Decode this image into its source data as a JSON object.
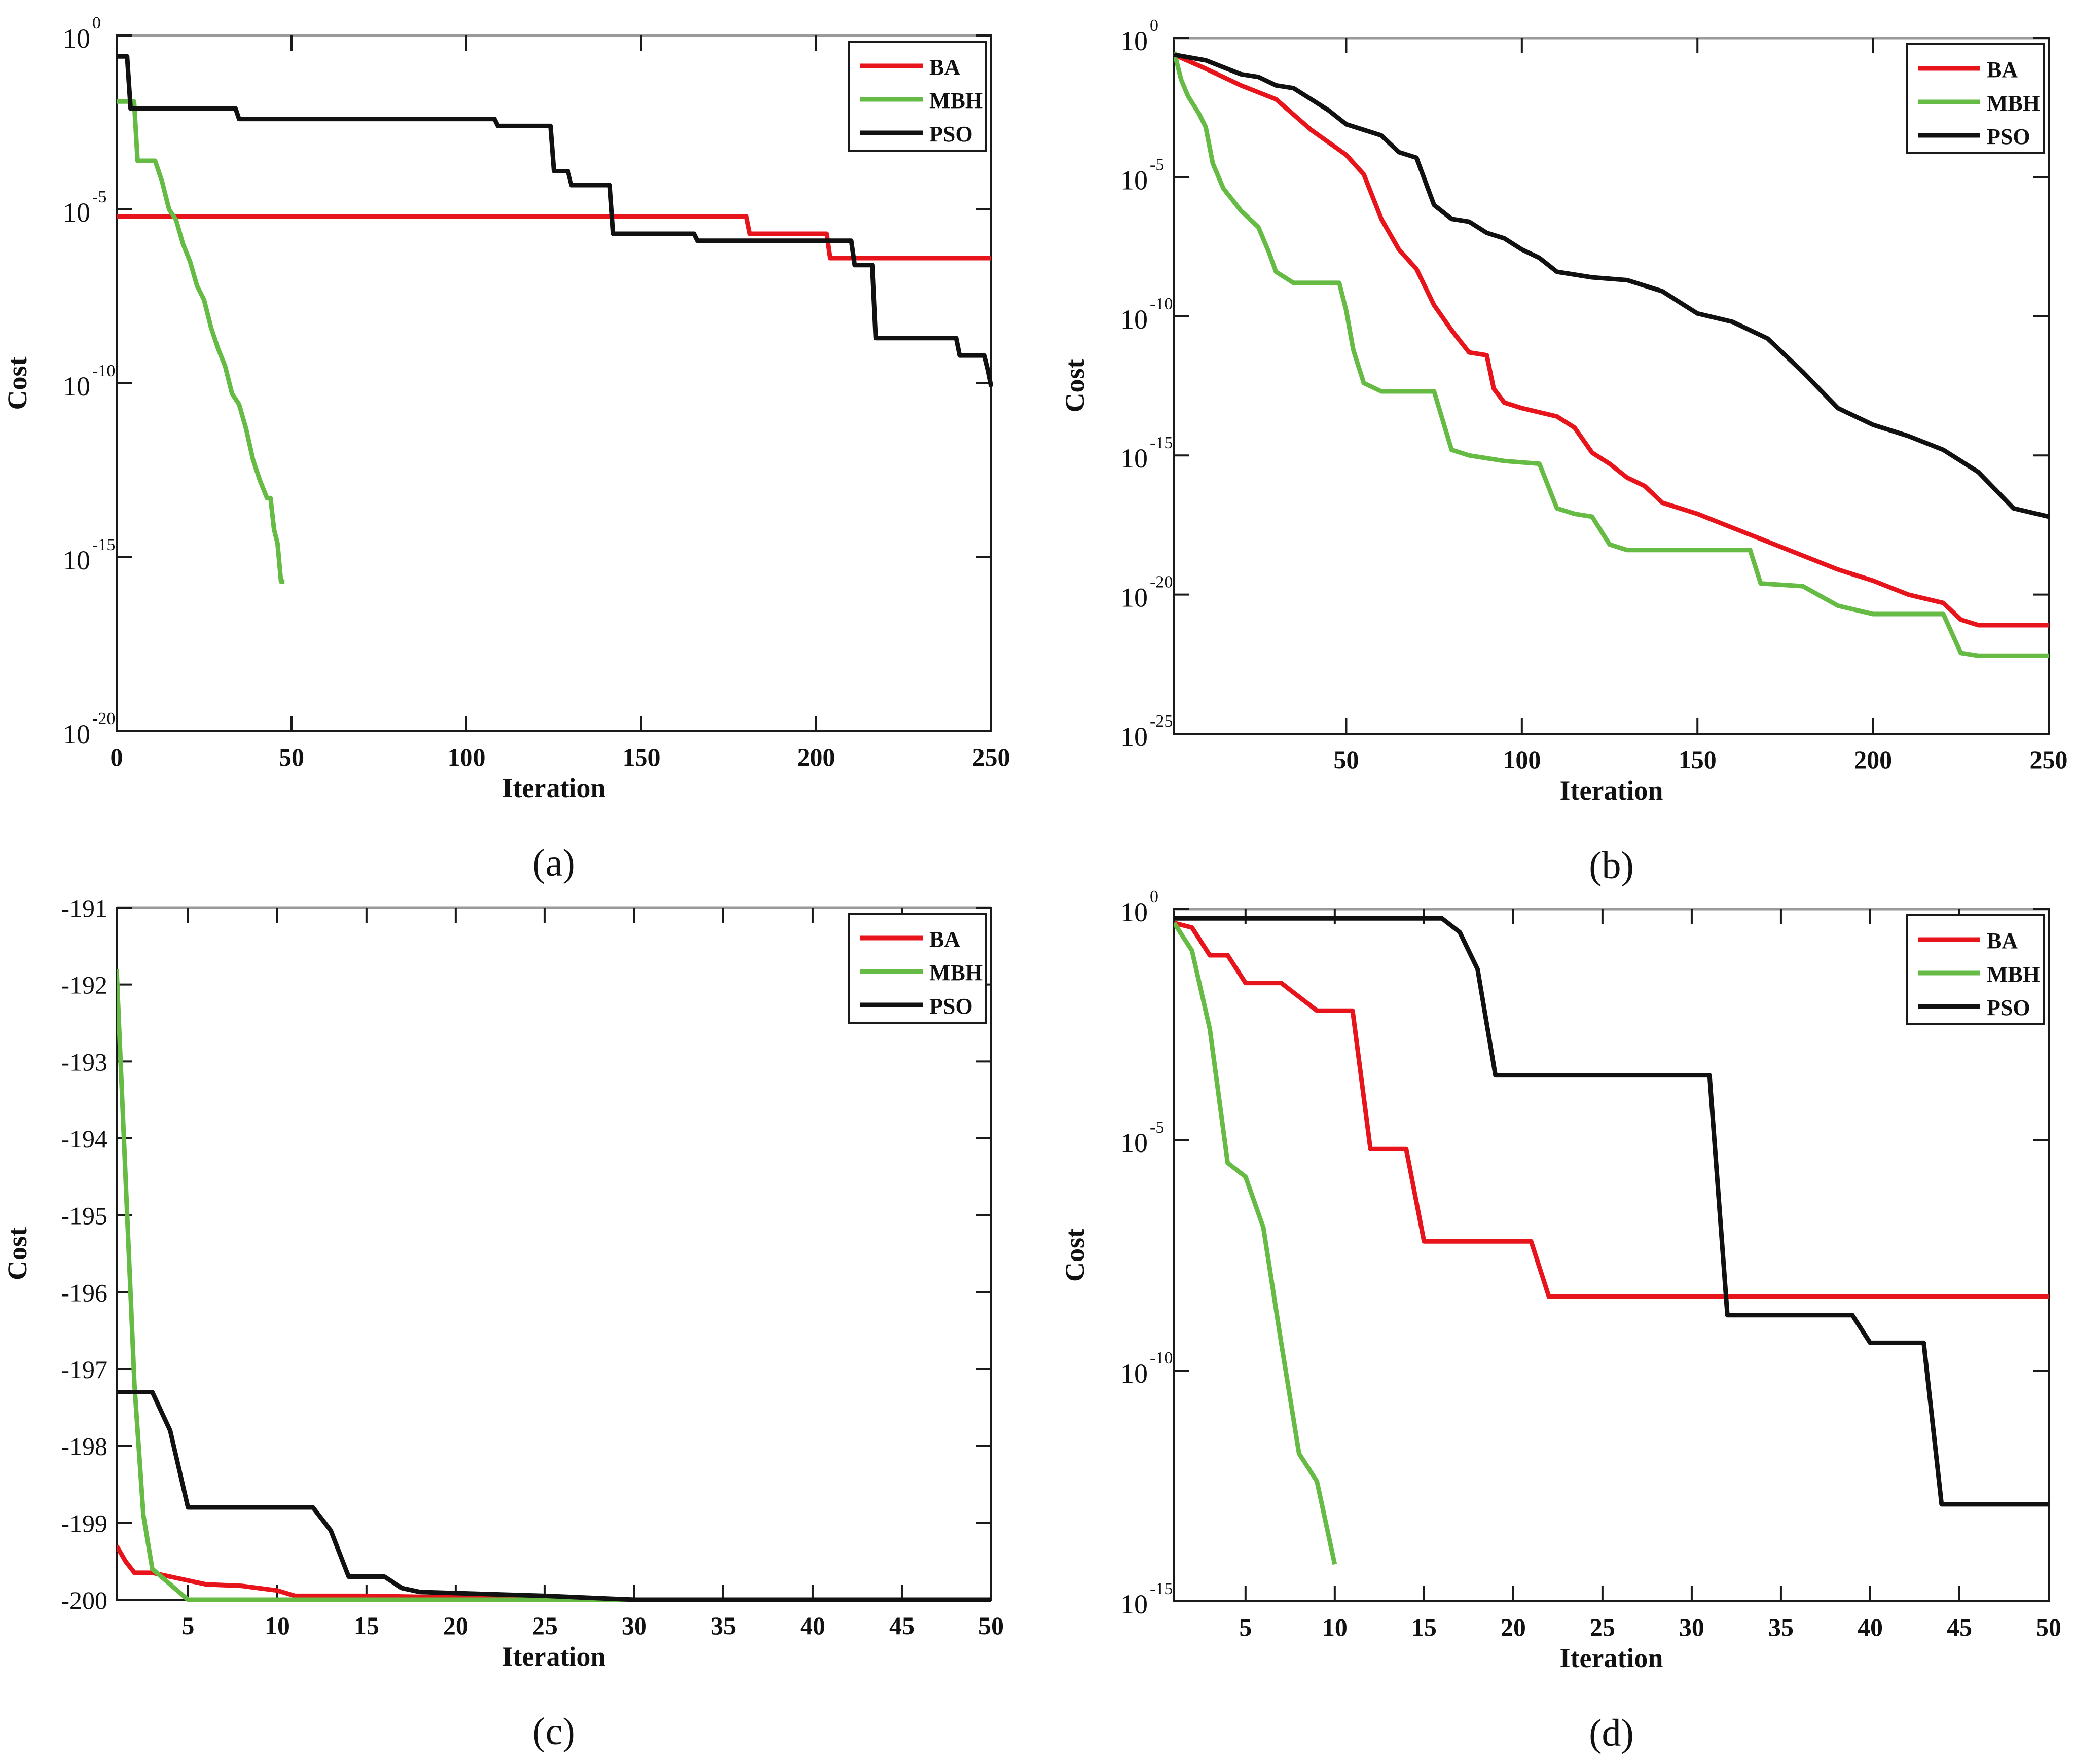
{
  "chart_data": [
    {
      "panel_label": "(a)",
      "type": "line",
      "xlabel": "Iteration",
      "ylabel": "Cost",
      "yscale": "log",
      "xlim": [
        0,
        250
      ],
      "ylim_exp": [
        -20,
        0
      ],
      "xticks": [
        0,
        50,
        100,
        150,
        200,
        250
      ],
      "yticks_exp": [
        0,
        -5,
        -10,
        -15,
        -20
      ],
      "tick_base": "10",
      "legend_position": "top-right",
      "legend_labels": [
        "BA",
        "MBH",
        "PSO"
      ],
      "series": [
        {
          "name": "BA",
          "color": "#e8141c",
          "points": [
            [
              0,
              -5.2
            ],
            [
              180,
              -5.2
            ],
            [
              181,
              -5.7
            ],
            [
              203,
              -5.7
            ],
            [
              204,
              -6.4
            ],
            [
              250,
              -6.4
            ]
          ]
        },
        {
          "name": "MBH",
          "color": "#66bb44",
          "points": [
            [
              0,
              -1.9
            ],
            [
              5,
              -1.9
            ],
            [
              6,
              -3.6
            ],
            [
              11,
              -3.6
            ],
            [
              13,
              -4.2
            ],
            [
              15,
              -5.0
            ],
            [
              17,
              -5.3
            ],
            [
              19,
              -6.0
            ],
            [
              21,
              -6.5
            ],
            [
              23,
              -7.2
            ],
            [
              25,
              -7.6
            ],
            [
              27,
              -8.4
            ],
            [
              29,
              -9.0
            ],
            [
              31,
              -9.5
            ],
            [
              33,
              -10.3
            ],
            [
              35,
              -10.6
            ],
            [
              37,
              -11.3
            ],
            [
              39,
              -12.2
            ],
            [
              41,
              -12.8
            ],
            [
              43,
              -13.3
            ],
            [
              44,
              -13.3
            ],
            [
              45,
              -14.2
            ],
            [
              46,
              -14.6
            ],
            [
              47,
              -15.7
            ],
            [
              48,
              -15.7
            ]
          ]
        },
        {
          "name": "PSO",
          "color": "#111111",
          "points": [
            [
              0,
              -0.6
            ],
            [
              3,
              -0.6
            ],
            [
              4,
              -2.1
            ],
            [
              34,
              -2.1
            ],
            [
              35,
              -2.4
            ],
            [
              108,
              -2.4
            ],
            [
              109,
              -2.6
            ],
            [
              124,
              -2.6
            ],
            [
              125,
              -3.9
            ],
            [
              129,
              -3.9
            ],
            [
              130,
              -4.3
            ],
            [
              141,
              -4.3
            ],
            [
              142,
              -5.7
            ],
            [
              165,
              -5.7
            ],
            [
              166,
              -5.9
            ],
            [
              210,
              -5.9
            ],
            [
              211,
              -6.6
            ],
            [
              216,
              -6.6
            ],
            [
              217,
              -8.7
            ],
            [
              240,
              -8.7
            ],
            [
              241,
              -9.2
            ],
            [
              248,
              -9.2
            ],
            [
              249,
              -9.6
            ],
            [
              250,
              -10.1
            ]
          ]
        }
      ]
    },
    {
      "panel_label": "(b)",
      "type": "line",
      "xlabel": "Iteration",
      "ylabel": "Cost",
      "yscale": "log",
      "xlim": [
        1,
        250
      ],
      "ylim_exp": [
        -25,
        0
      ],
      "xticks": [
        50,
        100,
        150,
        200,
        250
      ],
      "yticks_exp": [
        0,
        -5,
        -10,
        -15,
        -20,
        -25
      ],
      "tick_base": "10",
      "legend_position": "top-right",
      "legend_labels": [
        "BA",
        "MBH",
        "PSO"
      ],
      "series": [
        {
          "name": "BA",
          "color": "#e8141c",
          "points": [
            [
              1,
              -0.6
            ],
            [
              10,
              -1.1
            ],
            [
              20,
              -1.7
            ],
            [
              30,
              -2.2
            ],
            [
              40,
              -3.3
            ],
            [
              50,
              -4.2
            ],
            [
              55,
              -4.9
            ],
            [
              60,
              -6.5
            ],
            [
              65,
              -7.6
            ],
            [
              70,
              -8.3
            ],
            [
              75,
              -9.6
            ],
            [
              80,
              -10.5
            ],
            [
              85,
              -11.3
            ],
            [
              90,
              -11.4
            ],
            [
              92,
              -12.6
            ],
            [
              95,
              -13.1
            ],
            [
              100,
              -13.3
            ],
            [
              110,
              -13.6
            ],
            [
              115,
              -14.0
            ],
            [
              120,
              -14.9
            ],
            [
              125,
              -15.3
            ],
            [
              130,
              -15.8
            ],
            [
              135,
              -16.1
            ],
            [
              140,
              -16.7
            ],
            [
              150,
              -17.1
            ],
            [
              160,
              -17.6
            ],
            [
              170,
              -18.1
            ],
            [
              180,
              -18.6
            ],
            [
              190,
              -19.1
            ],
            [
              200,
              -19.5
            ],
            [
              210,
              -20.0
            ],
            [
              220,
              -20.3
            ],
            [
              225,
              -20.9
            ],
            [
              230,
              -21.1
            ],
            [
              250,
              -21.1
            ]
          ]
        },
        {
          "name": "MBH",
          "color": "#66bb44",
          "points": [
            [
              1,
              -0.5
            ],
            [
              3,
              -1.5
            ],
            [
              5,
              -2.1
            ],
            [
              8,
              -2.7
            ],
            [
              10,
              -3.2
            ],
            [
              12,
              -4.5
            ],
            [
              15,
              -5.4
            ],
            [
              20,
              -6.2
            ],
            [
              25,
              -6.8
            ],
            [
              28,
              -7.7
            ],
            [
              30,
              -8.4
            ],
            [
              35,
              -8.8
            ],
            [
              48,
              -8.8
            ],
            [
              50,
              -9.8
            ],
            [
              52,
              -11.2
            ],
            [
              55,
              -12.4
            ],
            [
              60,
              -12.7
            ],
            [
              75,
              -12.7
            ],
            [
              80,
              -14.8
            ],
            [
              85,
              -15.0
            ],
            [
              95,
              -15.2
            ],
            [
              105,
              -15.3
            ],
            [
              110,
              -16.9
            ],
            [
              115,
              -17.1
            ],
            [
              120,
              -17.2
            ],
            [
              125,
              -18.2
            ],
            [
              130,
              -18.4
            ],
            [
              150,
              -18.4
            ],
            [
              165,
              -18.4
            ],
            [
              168,
              -19.6
            ],
            [
              180,
              -19.7
            ],
            [
              190,
              -20.4
            ],
            [
              200,
              -20.7
            ],
            [
              220,
              -20.7
            ],
            [
              225,
              -22.1
            ],
            [
              230,
              -22.2
            ],
            [
              250,
              -22.2
            ]
          ]
        },
        {
          "name": "PSO",
          "color": "#111111",
          "points": [
            [
              1,
              -0.6
            ],
            [
              10,
              -0.8
            ],
            [
              20,
              -1.3
            ],
            [
              25,
              -1.4
            ],
            [
              30,
              -1.7
            ],
            [
              35,
              -1.8
            ],
            [
              40,
              -2.2
            ],
            [
              45,
              -2.6
            ],
            [
              50,
              -3.1
            ],
            [
              55,
              -3.3
            ],
            [
              60,
              -3.5
            ],
            [
              65,
              -4.1
            ],
            [
              70,
              -4.3
            ],
            [
              75,
              -6.0
            ],
            [
              80,
              -6.5
            ],
            [
              85,
              -6.6
            ],
            [
              90,
              -7.0
            ],
            [
              95,
              -7.2
            ],
            [
              100,
              -7.6
            ],
            [
              105,
              -7.9
            ],
            [
              110,
              -8.4
            ],
            [
              120,
              -8.6
            ],
            [
              130,
              -8.7
            ],
            [
              140,
              -9.1
            ],
            [
              145,
              -9.5
            ],
            [
              150,
              -9.9
            ],
            [
              160,
              -10.2
            ],
            [
              170,
              -10.8
            ],
            [
              180,
              -12.0
            ],
            [
              190,
              -13.3
            ],
            [
              200,
              -13.9
            ],
            [
              210,
              -14.3
            ],
            [
              220,
              -14.8
            ],
            [
              230,
              -15.6
            ],
            [
              240,
              -16.9
            ],
            [
              250,
              -17.2
            ]
          ]
        }
      ]
    },
    {
      "panel_label": "(c)",
      "type": "line",
      "xlabel": "Iteration",
      "ylabel": "Cost",
      "yscale": "linear",
      "xlim": [
        1,
        50
      ],
      "ylim": [
        -200,
        -191
      ],
      "xticks": [
        5,
        10,
        15,
        20,
        25,
        30,
        35,
        40,
        45,
        50
      ],
      "yticks": [
        -191,
        -192,
        -193,
        -194,
        -195,
        -196,
        -197,
        -198,
        -199,
        -200
      ],
      "legend_position": "top-right",
      "legend_labels": [
        "BA",
        "MBH",
        "PSO"
      ],
      "series": [
        {
          "name": "BA",
          "color": "#e8141c",
          "points": [
            [
              1,
              -199.3
            ],
            [
              1.5,
              -199.5
            ],
            [
              2,
              -199.65
            ],
            [
              3,
              -199.65
            ],
            [
              4,
              -199.7
            ],
            [
              6,
              -199.8
            ],
            [
              8,
              -199.82
            ],
            [
              10,
              -199.88
            ],
            [
              11,
              -199.95
            ],
            [
              15,
              -199.95
            ],
            [
              20,
              -199.97
            ],
            [
              30,
              -200
            ],
            [
              50,
              -200
            ]
          ]
        },
        {
          "name": "MBH",
          "color": "#66bb44",
          "points": [
            [
              1,
              -191.8
            ],
            [
              1.5,
              -194.5
            ],
            [
              2,
              -197.2
            ],
            [
              2.5,
              -198.9
            ],
            [
              3,
              -199.6
            ],
            [
              4,
              -199.8
            ],
            [
              5,
              -200
            ],
            [
              50,
              -200
            ]
          ]
        },
        {
          "name": "PSO",
          "color": "#111111",
          "points": [
            [
              1,
              -197.3
            ],
            [
              3,
              -197.3
            ],
            [
              4,
              -197.8
            ],
            [
              5,
              -198.8
            ],
            [
              12,
              -198.8
            ],
            [
              13,
              -199.1
            ],
            [
              14,
              -199.7
            ],
            [
              16,
              -199.7
            ],
            [
              17,
              -199.85
            ],
            [
              18,
              -199.9
            ],
            [
              25,
              -199.95
            ],
            [
              30,
              -200
            ],
            [
              50,
              -200
            ]
          ]
        }
      ]
    },
    {
      "panel_label": "(d)",
      "type": "line",
      "xlabel": "Iteration",
      "ylabel": "Cost",
      "yscale": "log",
      "xlim": [
        1,
        50
      ],
      "ylim_exp": [
        -15,
        0
      ],
      "xticks": [
        5,
        10,
        15,
        20,
        25,
        30,
        35,
        40,
        45,
        50
      ],
      "yticks_exp": [
        0,
        -5,
        -10,
        -15
      ],
      "tick_base": "10",
      "legend_position": "top-right",
      "legend_labels": [
        "BA",
        "MBH",
        "PSO"
      ],
      "series": [
        {
          "name": "BA",
          "color": "#e8141c",
          "points": [
            [
              1,
              -0.3
            ],
            [
              2,
              -0.4
            ],
            [
              3,
              -1.0
            ],
            [
              4,
              -1.0
            ],
            [
              5,
              -1.6
            ],
            [
              7,
              -1.6
            ],
            [
              9,
              -2.2
            ],
            [
              11,
              -2.2
            ],
            [
              12,
              -5.2
            ],
            [
              14,
              -5.2
            ],
            [
              15,
              -7.2
            ],
            [
              21,
              -7.2
            ],
            [
              22,
              -8.4
            ],
            [
              50,
              -8.4
            ]
          ]
        },
        {
          "name": "MBH",
          "color": "#66bb44",
          "points": [
            [
              1,
              -0.3
            ],
            [
              2,
              -0.9
            ],
            [
              3,
              -2.6
            ],
            [
              4,
              -5.5
            ],
            [
              5,
              -5.8
            ],
            [
              6,
              -6.9
            ],
            [
              7,
              -9.4
            ],
            [
              8,
              -11.8
            ],
            [
              9,
              -12.4
            ],
            [
              10,
              -14.2
            ]
          ]
        },
        {
          "name": "PSO",
          "color": "#111111",
          "points": [
            [
              1,
              -0.2
            ],
            [
              16,
              -0.2
            ],
            [
              17,
              -0.5
            ],
            [
              18,
              -1.3
            ],
            [
              19,
              -3.6
            ],
            [
              31,
              -3.6
            ],
            [
              32,
              -8.8
            ],
            [
              39,
              -8.8
            ],
            [
              40,
              -9.4
            ],
            [
              43,
              -9.4
            ],
            [
              44,
              -12.9
            ],
            [
              50,
              -12.9
            ]
          ]
        }
      ]
    }
  ]
}
